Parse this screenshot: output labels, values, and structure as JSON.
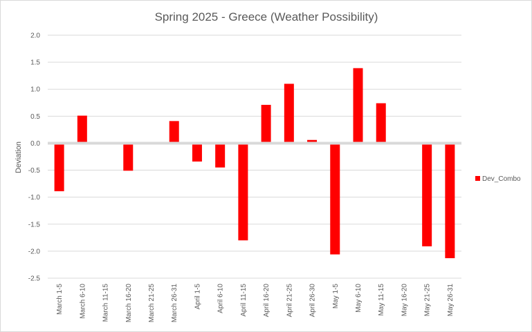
{
  "chart_data": {
    "type": "bar",
    "title": "Spring 2025 - Greece (Weather Possibility)",
    "xlabel": "",
    "ylabel": "Deviation",
    "ylim": [
      -2.5,
      2.0
    ],
    "ytick_step": 0.5,
    "ytick_labels": [
      "2.0",
      "1.5",
      "1.0",
      "0.5",
      "0.0",
      "-0.5",
      "-1.0",
      "-1.5",
      "-2.0",
      "-2.5"
    ],
    "grid": true,
    "legend_position": "right",
    "categories": [
      "March 1-5",
      "March 6-10",
      "March 11-15",
      "March 16-20",
      "March 21-25",
      "March 26-31",
      "April 1-5",
      "April 6-10",
      "April 11-15",
      "April 16-20",
      "April 21-25",
      "April 26-30",
      "May 1-5",
      "May 6-10",
      "May 11-15",
      "May 16-20",
      "May 21-25",
      "May 26-31"
    ],
    "series": [
      {
        "name": "Dev_Combo",
        "color": "#ff0000",
        "values": [
          -0.89,
          0.51,
          0,
          -0.51,
          0,
          0.41,
          -0.34,
          -0.45,
          -1.8,
          0.71,
          1.1,
          0.06,
          -2.06,
          1.39,
          0.74,
          0,
          -1.91,
          -2.13
        ]
      }
    ]
  }
}
